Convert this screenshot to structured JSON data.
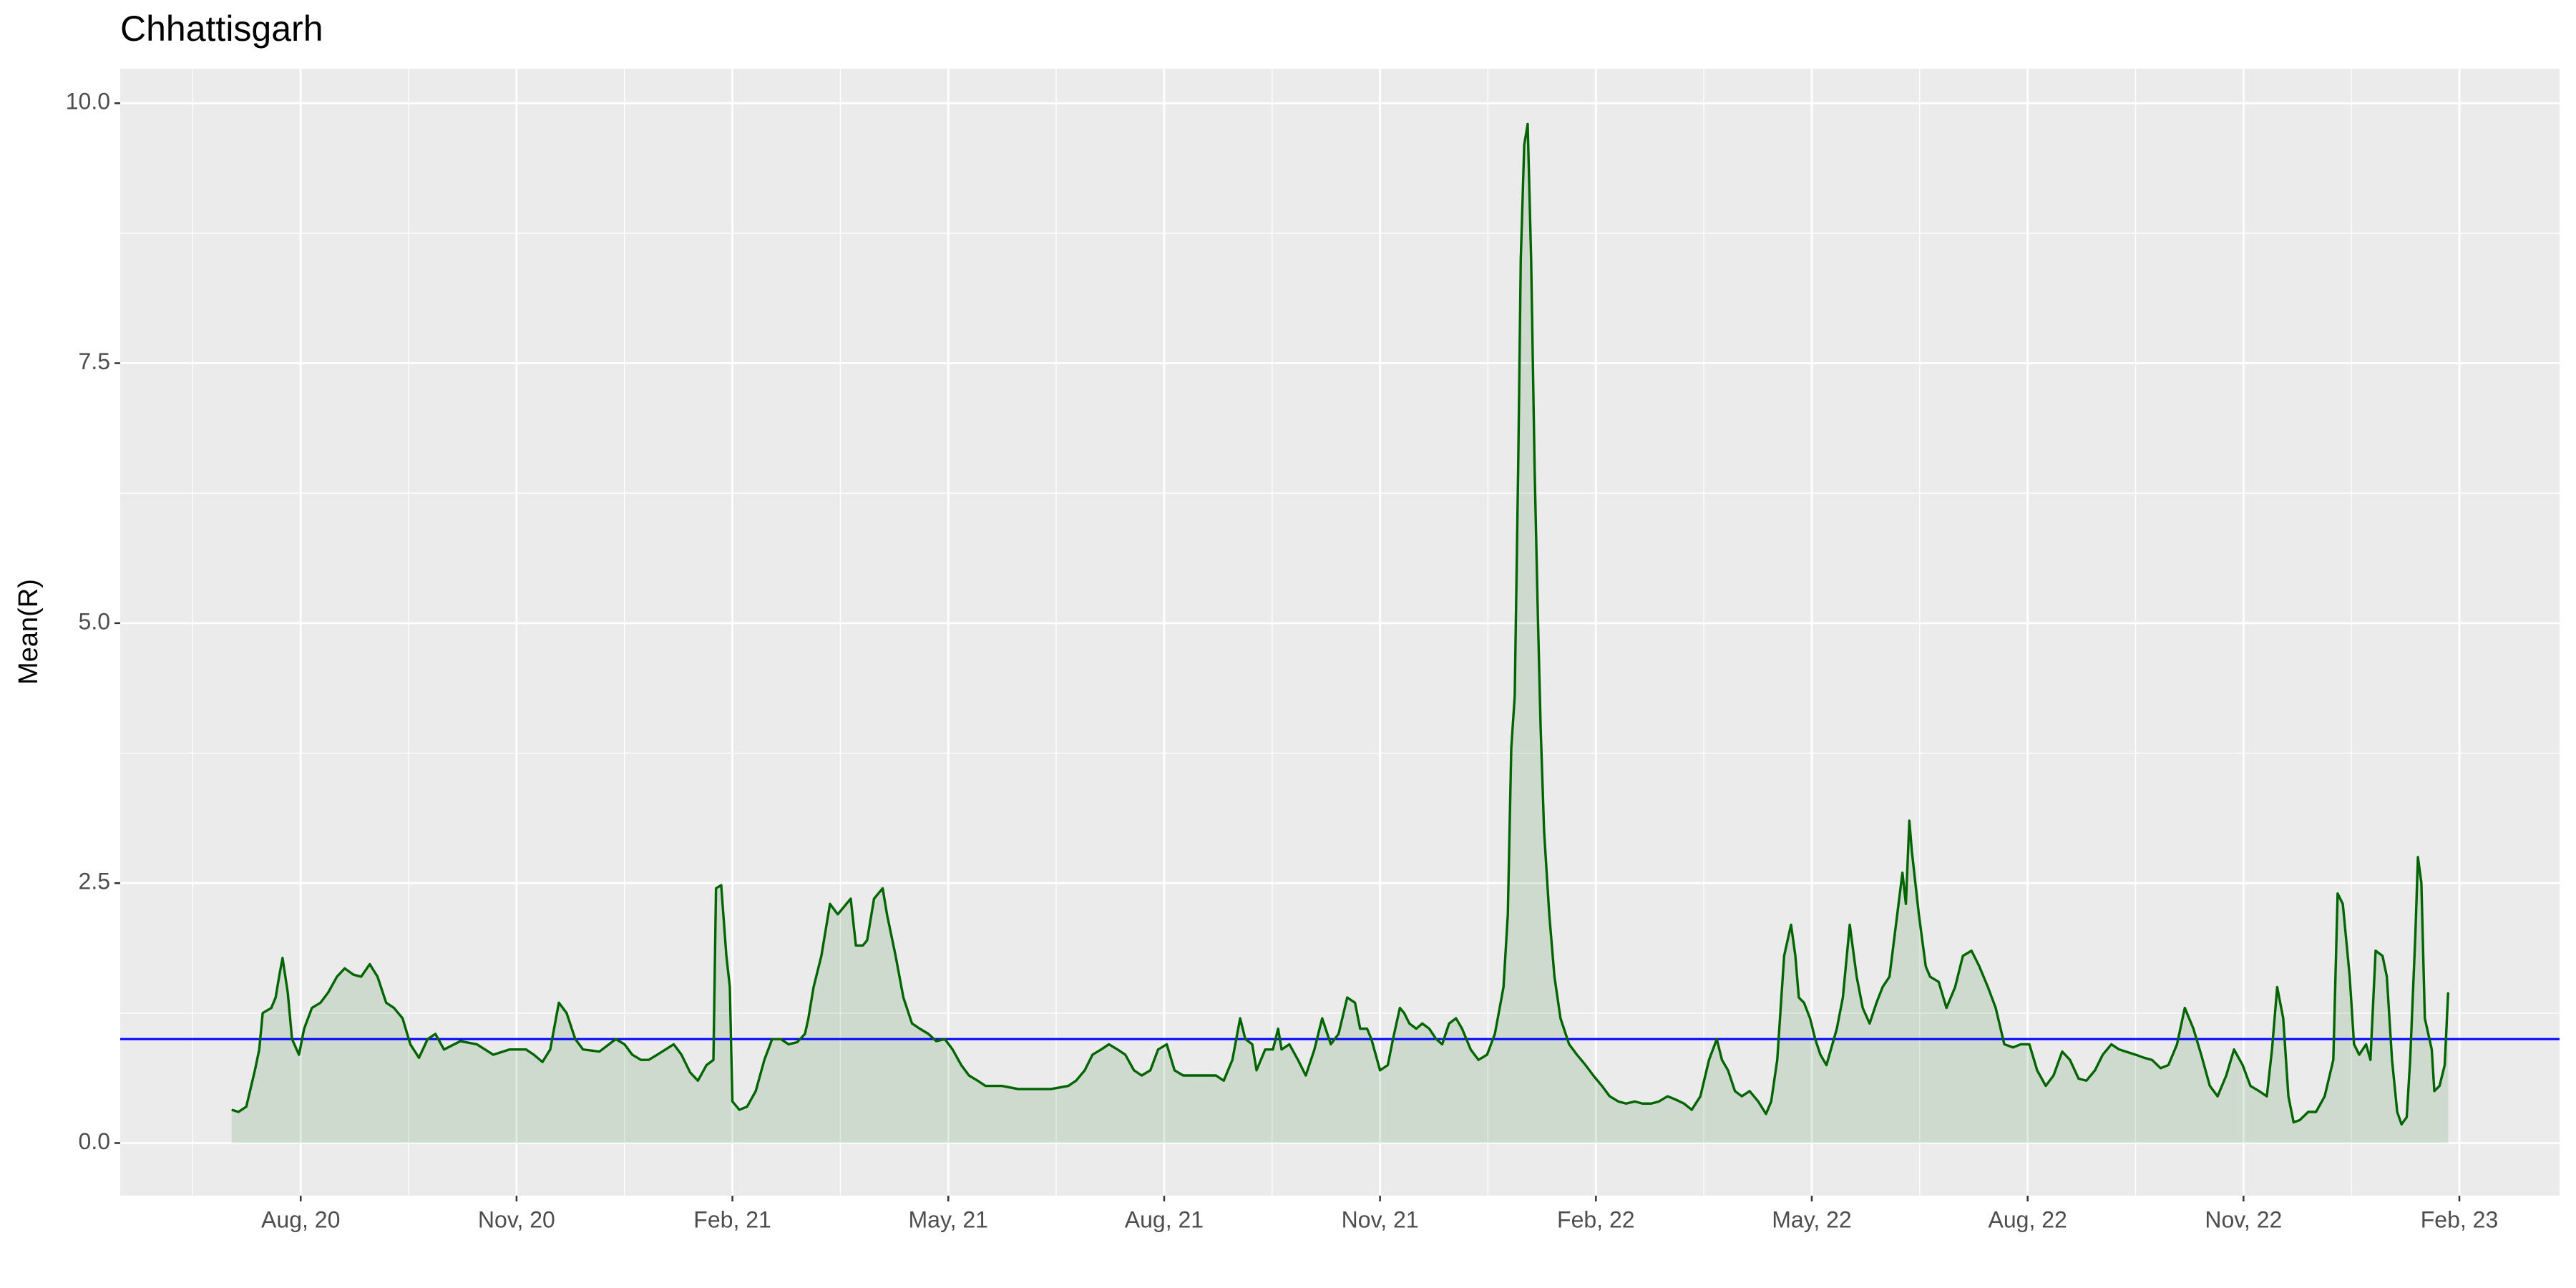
{
  "chart_data": {
    "type": "line",
    "title": "Chhattisgarh",
    "y_label": "Mean(R)",
    "color": "#006400",
    "area": true,
    "area_color": "#006400",
    "area_opacity": 0.12,
    "grid": true,
    "hline": {
      "value": 1,
      "color": "#0000ff"
    },
    "xlim": [
      2020.374,
      2023.199
    ],
    "ylim": [
      -0.506,
      10.332
    ],
    "xticks": [
      {
        "value": 2020.583,
        "label": "Aug, 20"
      },
      {
        "value": 2020.833,
        "label": "Nov, 20"
      },
      {
        "value": 2021.083,
        "label": "Feb, 21"
      },
      {
        "value": 2021.333,
        "label": "May, 21"
      },
      {
        "value": 2021.583,
        "label": "Aug, 21"
      },
      {
        "value": 2021.833,
        "label": "Nov, 21"
      },
      {
        "value": 2022.083,
        "label": "Feb, 22"
      },
      {
        "value": 2022.333,
        "label": "May, 22"
      },
      {
        "value": 2022.583,
        "label": "Aug, 22"
      },
      {
        "value": 2022.833,
        "label": "Nov, 22"
      },
      {
        "value": 2023.083,
        "label": "Feb, 23"
      }
    ],
    "yticks": [
      {
        "value": 0,
        "label": "0.0"
      },
      2.5,
      {
        "value": 5,
        "label": "5.0"
      },
      7.5,
      {
        "value": 10,
        "label": "10.0"
      }
    ],
    "x": [
      2020.503,
      2020.511,
      2020.52,
      2020.53,
      2020.535,
      2020.539,
      2020.549,
      2020.554,
      2020.558,
      2020.562,
      2020.568,
      2020.573,
      2020.581,
      2020.587,
      2020.596,
      2020.606,
      2020.615,
      2020.625,
      2020.634,
      2020.644,
      2020.653,
      2020.663,
      2020.672,
      2020.682,
      2020.691,
      2020.701,
      2020.71,
      2020.72,
      2020.73,
      2020.739,
      2020.749,
      2020.768,
      2020.787,
      2020.806,
      2020.825,
      2020.844,
      2020.853,
      2020.863,
      2020.872,
      2020.882,
      2020.891,
      2020.901,
      2020.91,
      2020.929,
      2020.948,
      2020.958,
      2020.967,
      2020.977,
      2020.986,
      2020.996,
      2021.015,
      2021.024,
      2021.034,
      2021.043,
      2021.053,
      2021.061,
      2021.064,
      2021.07,
      2021.076,
      2021.08,
      2021.083,
      2021.091,
      2021.1,
      2021.11,
      2021.12,
      2021.129,
      2021.139,
      2021.148,
      2021.158,
      2021.167,
      2021.171,
      2021.177,
      2021.186,
      2021.196,
      2021.205,
      2021.215,
      2021.22,
      2021.226,
      2021.234,
      2021.239,
      2021.247,
      2021.257,
      2021.262,
      2021.272,
      2021.281,
      2021.291,
      2021.3,
      2021.31,
      2021.319,
      2021.329,
      2021.338,
      2021.348,
      2021.357,
      2021.367,
      2021.376,
      2021.395,
      2021.414,
      2021.433,
      2021.452,
      2021.472,
      2021.481,
      2021.491,
      2021.5,
      2021.51,
      2021.519,
      2021.529,
      2021.538,
      2021.548,
      2021.557,
      2021.567,
      2021.576,
      2021.586,
      2021.595,
      2021.605,
      2021.624,
      2021.643,
      2021.652,
      2021.662,
      2021.671,
      2021.677,
      2021.685,
      2021.69,
      2021.7,
      2021.709,
      2021.715,
      2021.719,
      2021.728,
      2021.738,
      2021.747,
      2021.757,
      2021.766,
      2021.776,
      2021.785,
      2021.795,
      2021.804,
      2021.81,
      2021.818,
      2021.823,
      2021.833,
      2021.842,
      2021.848,
      2021.856,
      2021.861,
      2021.867,
      2021.875,
      2021.882,
      2021.89,
      2021.898,
      2021.905,
      2021.913,
      2021.921,
      2021.928,
      2021.938,
      2021.947,
      2021.957,
      2021.966,
      2021.976,
      2021.981,
      2021.985,
      2021.989,
      2021.993,
      2021.996,
      2022.0,
      2022.004,
      2022.008,
      2022.012,
      2022.016,
      2022.019,
      2022.023,
      2022.029,
      2022.035,
      2022.042,
      2022.052,
      2022.061,
      2022.071,
      2022.08,
      2022.09,
      2022.099,
      2022.109,
      2022.118,
      2022.128,
      2022.137,
      2022.147,
      2022.156,
      2022.166,
      2022.175,
      2022.185,
      2022.194,
      2022.204,
      2022.214,
      2022.223,
      2022.229,
      2022.236,
      2022.244,
      2022.252,
      2022.261,
      2022.271,
      2022.28,
      2022.286,
      2022.293,
      2022.301,
      2022.309,
      2022.314,
      2022.318,
      2022.324,
      2022.331,
      2022.337,
      2022.343,
      2022.35,
      2022.362,
      2022.369,
      2022.377,
      2022.385,
      2022.392,
      2022.4,
      2022.408,
      2022.415,
      2022.423,
      2022.432,
      2022.438,
      2022.442,
      2022.446,
      2022.449,
      2022.453,
      2022.457,
      2022.465,
      2022.47,
      2022.48,
      2022.489,
      2022.499,
      2022.508,
      2022.518,
      2022.527,
      2022.537,
      2022.546,
      2022.556,
      2022.566,
      2022.575,
      2022.585,
      2022.594,
      2022.604,
      2022.613,
      2022.623,
      2022.632,
      2022.642,
      2022.651,
      2022.661,
      2022.67,
      2022.68,
      2022.689,
      2022.708,
      2022.718,
      2022.727,
      2022.737,
      2022.746,
      2022.756,
      2022.765,
      2022.775,
      2022.784,
      2022.794,
      2022.803,
      2022.813,
      2022.822,
      2022.832,
      2022.841,
      2022.851,
      2022.86,
      2022.866,
      2022.872,
      2022.879,
      2022.885,
      2022.891,
      2022.898,
      2022.908,
      2022.917,
      2022.927,
      2022.937,
      2022.942,
      2022.948,
      2022.956,
      2022.961,
      2022.967,
      2022.975,
      2022.98,
      2022.986,
      2022.994,
      2022.999,
      2023.005,
      2023.011,
      2023.016,
      2023.022,
      2023.026,
      2023.032,
      2023.035,
      2023.039,
      2023.043,
      2023.051,
      2023.054,
      2023.06,
      2023.066,
      2023.07
    ],
    "values": [
      0.32,
      0.3,
      0.35,
      0.7,
      0.9,
      1.25,
      1.3,
      1.4,
      1.6,
      1.78,
      1.45,
      1.0,
      0.85,
      1.1,
      1.3,
      1.35,
      1.45,
      1.6,
      1.68,
      1.62,
      1.6,
      1.72,
      1.6,
      1.35,
      1.3,
      1.2,
      0.95,
      0.82,
      1.0,
      1.05,
      0.9,
      0.98,
      0.95,
      0.85,
      0.9,
      0.9,
      0.85,
      0.78,
      0.9,
      1.35,
      1.25,
      1.0,
      0.9,
      0.88,
      1.0,
      0.95,
      0.85,
      0.8,
      0.8,
      0.85,
      0.95,
      0.85,
      0.68,
      0.6,
      0.75,
      0.8,
      2.45,
      2.48,
      1.8,
      1.5,
      0.4,
      0.32,
      0.35,
      0.5,
      0.8,
      1.0,
      1.0,
      0.95,
      0.97,
      1.05,
      1.2,
      1.5,
      1.8,
      2.3,
      2.2,
      2.3,
      2.35,
      1.9,
      1.9,
      1.95,
      2.35,
      2.45,
      2.2,
      1.8,
      1.4,
      1.15,
      1.1,
      1.05,
      0.98,
      1.0,
      0.9,
      0.75,
      0.65,
      0.6,
      0.55,
      0.55,
      0.52,
      0.52,
      0.52,
      0.55,
      0.6,
      0.7,
      0.85,
      0.9,
      0.95,
      0.9,
      0.85,
      0.7,
      0.65,
      0.7,
      0.9,
      0.95,
      0.7,
      0.65,
      0.65,
      0.65,
      0.6,
      0.8,
      1.2,
      1.0,
      0.95,
      0.7,
      0.9,
      0.9,
      1.1,
      0.9,
      0.95,
      0.8,
      0.65,
      0.9,
      1.2,
      0.95,
      1.05,
      1.4,
      1.35,
      1.1,
      1.1,
      1.0,
      0.7,
      0.75,
      1.0,
      1.3,
      1.25,
      1.15,
      1.1,
      1.15,
      1.1,
      1.0,
      0.95,
      1.15,
      1.2,
      1.1,
      0.9,
      0.8,
      0.85,
      1.05,
      1.5,
      2.2,
      3.8,
      4.3,
      6.5,
      8.5,
      9.6,
      9.8,
      8.5,
      6.5,
      5.0,
      4.0,
      3.0,
      2.2,
      1.6,
      1.2,
      0.95,
      0.85,
      0.75,
      0.65,
      0.55,
      0.45,
      0.4,
      0.38,
      0.4,
      0.38,
      0.38,
      0.4,
      0.45,
      0.42,
      0.38,
      0.32,
      0.45,
      0.8,
      1.0,
      0.8,
      0.7,
      0.5,
      0.45,
      0.5,
      0.4,
      0.28,
      0.4,
      0.8,
      1.8,
      2.1,
      1.8,
      1.4,
      1.35,
      1.2,
      1.0,
      0.85,
      0.75,
      1.1,
      1.4,
      2.1,
      1.6,
      1.3,
      1.15,
      1.35,
      1.5,
      1.6,
      2.2,
      2.6,
      2.3,
      3.1,
      2.8,
      2.5,
      2.2,
      1.7,
      1.6,
      1.55,
      1.3,
      1.5,
      1.8,
      1.85,
      1.7,
      1.5,
      1.3,
      0.95,
      0.92,
      0.95,
      0.95,
      0.7,
      0.55,
      0.65,
      0.88,
      0.8,
      0.62,
      0.6,
      0.7,
      0.85,
      0.95,
      0.9,
      0.85,
      0.82,
      0.8,
      0.72,
      0.75,
      0.95,
      1.3,
      1.1,
      0.85,
      0.55,
      0.45,
      0.65,
      0.9,
      0.75,
      0.55,
      0.5,
      0.45,
      0.9,
      1.5,
      1.2,
      0.45,
      0.2,
      0.22,
      0.3,
      0.3,
      0.45,
      0.8,
      2.4,
      2.3,
      1.6,
      0.95,
      0.85,
      0.95,
      0.8,
      1.85,
      1.8,
      1.6,
      0.8,
      0.3,
      0.18,
      0.25,
      0.8,
      2.0,
      2.75,
      2.5,
      1.2,
      0.9,
      0.5,
      0.55,
      0.75,
      1.45
    ]
  }
}
